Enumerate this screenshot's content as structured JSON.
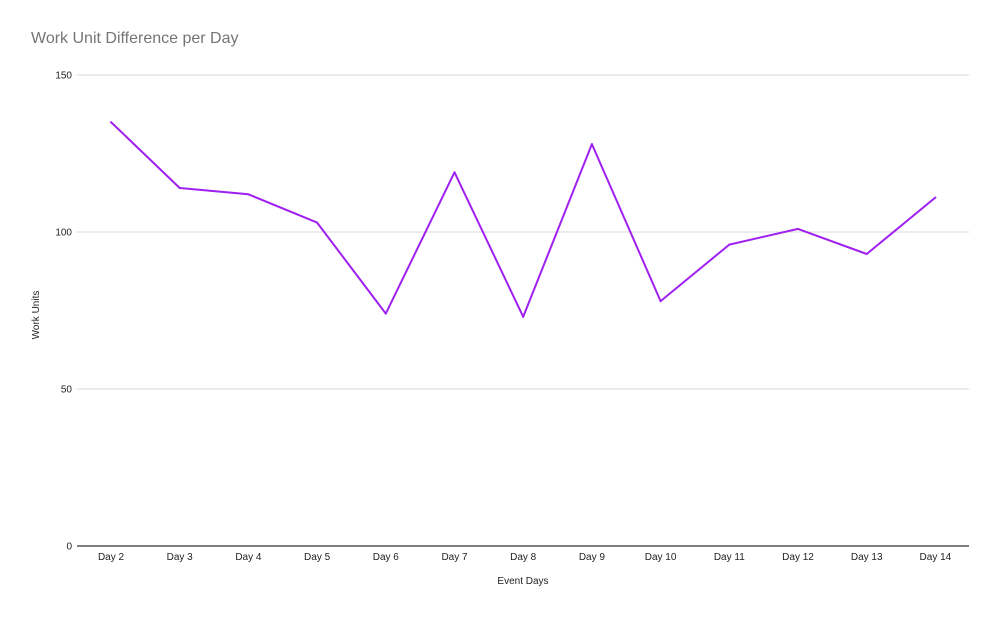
{
  "chart_data": {
    "type": "line",
    "title": "Work Unit Difference per Day",
    "xlabel": "Event Days",
    "ylabel": "Work Units",
    "categories": [
      "Day 2",
      "Day 3",
      "Day 4",
      "Day 5",
      "Day 6",
      "Day 7",
      "Day 8",
      "Day 9",
      "Day 10",
      "Day 11",
      "Day 12",
      "Day 13",
      "Day 14"
    ],
    "series": [
      {
        "values": [
          135,
          114,
          112,
          103,
          74,
          119,
          73,
          128,
          78,
          96,
          101,
          93,
          111
        ]
      }
    ],
    "ylim": [
      0,
      150
    ],
    "yticks": [
      0,
      50,
      100,
      150
    ],
    "grid": true,
    "legend": "none",
    "colors": {
      "line": "#a020f0",
      "grid": "#d9d9d9",
      "axis": "#333333",
      "title": "#757575"
    }
  }
}
